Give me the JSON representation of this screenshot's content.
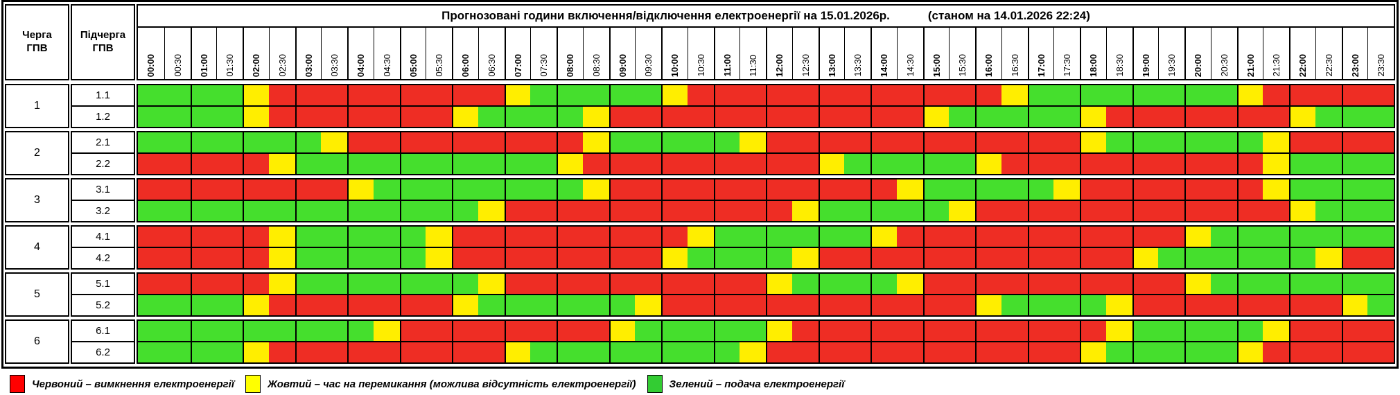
{
  "header": {
    "queue_col": "Черга\nГПВ",
    "subqueue_col": "Підчерга\nГПВ"
  },
  "chart_data": {
    "type": "heatmap",
    "title": "Прогнозовані години включення/відключення електроенергії на 15.01.2026р.",
    "as_of": "(станом на 14.01.2026 22:24)",
    "x_labels": [
      "00:00",
      "00:30",
      "01:00",
      "01:30",
      "02:00",
      "02:30",
      "03:00",
      "03:30",
      "04:00",
      "04:30",
      "05:00",
      "05:30",
      "06:00",
      "06:30",
      "07:00",
      "07:30",
      "08:00",
      "08:30",
      "09:00",
      "09:30",
      "10:00",
      "10:30",
      "11:00",
      "11:30",
      "12:00",
      "12:30",
      "13:00",
      "13:30",
      "14:00",
      "14:30",
      "15:00",
      "15:30",
      "16:00",
      "16:30",
      "17:00",
      "17:30",
      "18:00",
      "18:30",
      "19:00",
      "19:30",
      "20:00",
      "20:30",
      "21:00",
      "21:30",
      "22:00",
      "22:30",
      "23:00",
      "23:30"
    ],
    "cell_colors": {
      "R": "#ee2d24",
      "Y": "#ffee00",
      "G": "#45df2d"
    },
    "status_meaning": {
      "R": "вимкнення",
      "Y": "перемикання",
      "G": "подача"
    },
    "queues": [
      {
        "label": "1",
        "subrows": [
          {
            "label": "1.1",
            "cells": "GGGGYRRRRRRRRRYGGGGGYRRRRRRRRRRRRYGGGGGGGGYRRRRR"
          },
          {
            "label": "1.2",
            "cells": "GGGGYRRRRRRRYGGGGYRRRRRRRRRRRRYGGGGGYRRRRRRRYGGG"
          }
        ]
      },
      {
        "label": "2",
        "subrows": [
          {
            "label": "2.1",
            "cells": "GGGGGGGYRRRRRRRRRYGGGGGYRRRRRRRRRRRRYGGGGGGYRRRR"
          },
          {
            "label": "2.2",
            "cells": "RRRRRYGGGGGGGGGGYRRRRRRRRRYGGGGGYRRRRRRRRRRYGGGG"
          }
        ]
      },
      {
        "label": "3",
        "subrows": [
          {
            "label": "3.1",
            "cells": "RRRRRRRRYGGGGGGGGYRRRRRRRRRRRYGGGGGYRRRRRRRYGGGG"
          },
          {
            "label": "3.2",
            "cells": "GGGGGGGGGGGGGYRRRRRRRRRRRYGGGGGYRRRRRRRRRRRRYGGG"
          }
        ]
      },
      {
        "label": "4",
        "subrows": [
          {
            "label": "4.1",
            "cells": "RRRRRYGGGGGYRRRRRRRRRYGGGGGGYRRRRRRRRRRRYGGGGGGG"
          },
          {
            "label": "4.2",
            "cells": "RRRRRYGGGGGYRRRRRRRRYGGGGYRRRRRRRRRRRRYGGGGGGYRR"
          }
        ]
      },
      {
        "label": "5",
        "subrows": [
          {
            "label": "5.1",
            "cells": "RRRRRYGGGGGGGYRRRRRRRRRRYGGGGYRRRRRRRRRRYGGGGGGG"
          },
          {
            "label": "5.2",
            "cells": "GGGGYRRRRRRRYGGGGGGYRRRRRRRRRRRRYGGGGYRRRRRRRRYG"
          }
        ]
      },
      {
        "label": "6",
        "subrows": [
          {
            "label": "6.1",
            "cells": "GGGGGGGGGYRRRRRRRRYGGGGGYRRRRRRRRRRRRYGGGGGYRRRR"
          },
          {
            "label": "6.2",
            "cells": "GGGGYRRRRRRRRRYGGGGGGGGYRRRRRRRRRRRRYGGGGGYRRRRR"
          }
        ]
      }
    ],
    "legend": [
      {
        "color": "#ff0000",
        "label": "Червоний – вимкнення електроенергії"
      },
      {
        "color": "#ffff00",
        "label": "Жовтий – час на перемикання (можлива відсутність електроенергії)"
      },
      {
        "color": "#33cc33",
        "label": "Зелений – подача електроенергії"
      }
    ]
  }
}
